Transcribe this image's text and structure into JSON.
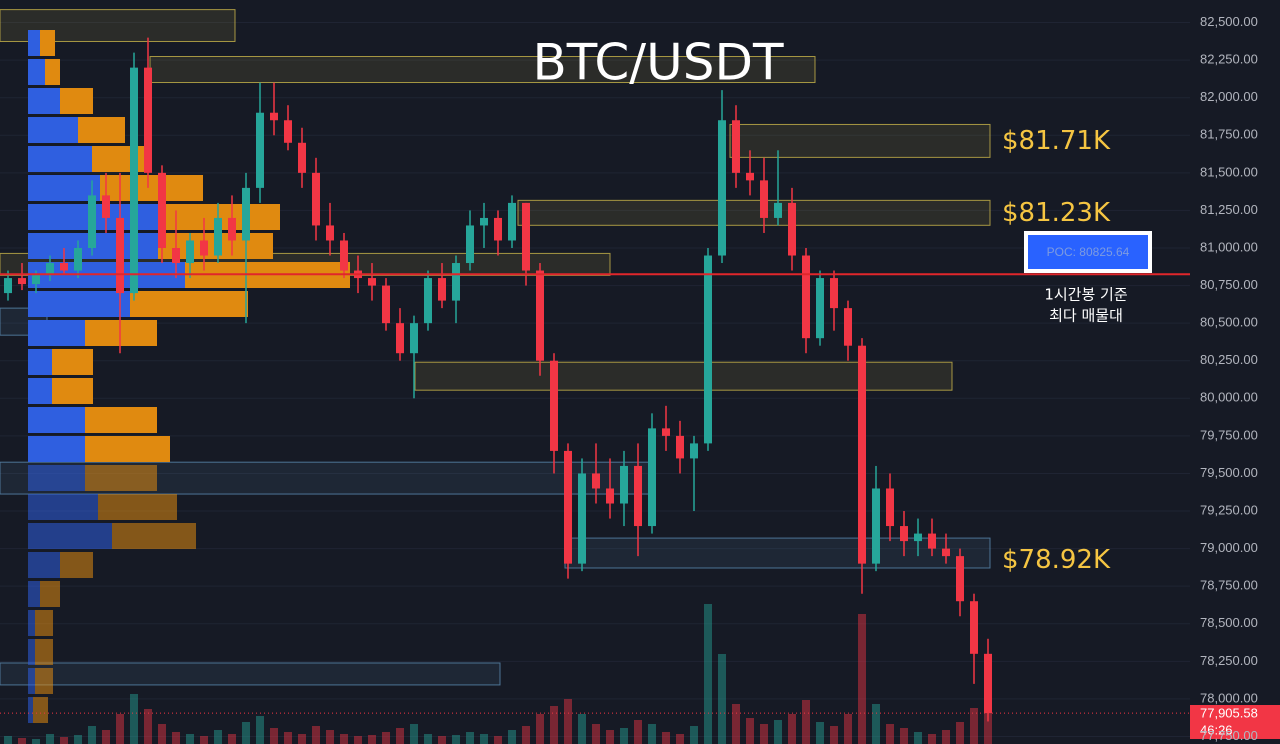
{
  "chart_data": {
    "type": "candlestick",
    "title": "BTC/USDT",
    "up_color": "#26a69a",
    "down_color": "#f23645",
    "open": [
      80700,
      80800,
      80760,
      80820,
      80900,
      80850,
      81000,
      81350,
      81200,
      80700,
      82200,
      81500,
      81000,
      80900,
      81050,
      80950,
      81200,
      81050,
      81400,
      81900,
      81850,
      81700,
      81500,
      81150,
      81050,
      80850,
      80800,
      80750,
      80500,
      80300,
      80500,
      80800,
      80650,
      80900,
      81150,
      81200,
      81050,
      81300,
      80850,
      80250,
      79650,
      78900,
      79500,
      79400,
      79300,
      79550,
      79150,
      79800,
      79750,
      79600,
      79700,
      80950,
      81850,
      81500,
      81450,
      81200,
      81300,
      80950,
      80400,
      80800,
      80600,
      80350,
      78900,
      79400,
      79150,
      79050,
      79100,
      79000,
      78950,
      78650,
      78300
    ],
    "high": [
      80850,
      80900,
      80850,
      80950,
      81000,
      81050,
      81450,
      81500,
      81500,
      82300,
      82400,
      81550,
      81250,
      81100,
      81200,
      81300,
      81350,
      81500,
      82100,
      82100,
      81950,
      81800,
      81600,
      81300,
      81100,
      80950,
      80900,
      80800,
      80600,
      80550,
      80850,
      80900,
      80950,
      81250,
      81300,
      81250,
      81350,
      81300,
      80900,
      80300,
      79700,
      79600,
      79700,
      79600,
      79650,
      79700,
      79900,
      79950,
      79850,
      79750,
      81000,
      82050,
      81950,
      81650,
      81600,
      81650,
      81400,
      81000,
      80850,
      80850,
      80650,
      80400,
      79550,
      79500,
      79250,
      79200,
      79200,
      79100,
      79000,
      78700,
      78400
    ],
    "low": [
      80650,
      80720,
      80700,
      80780,
      80820,
      80800,
      80950,
      81100,
      80300,
      80650,
      81400,
      80900,
      80800,
      80800,
      80850,
      80900,
      80950,
      80500,
      81300,
      81750,
      81650,
      81400,
      81050,
      80950,
      80800,
      80700,
      80650,
      80450,
      80250,
      80000,
      80450,
      80600,
      80500,
      80850,
      81000,
      80950,
      81000,
      80750,
      80150,
      79500,
      78800,
      78850,
      79300,
      79200,
      79150,
      78950,
      79100,
      79650,
      79500,
      79250,
      79650,
      80900,
      81400,
      81350,
      81100,
      81150,
      80850,
      80300,
      80350,
      80450,
      80250,
      78700,
      78850,
      79050,
      78950,
      78950,
      78950,
      78900,
      78550,
      78100,
      77850
    ],
    "close": [
      80800,
      80760,
      80820,
      80900,
      80850,
      81000,
      81350,
      81200,
      80700,
      82200,
      81500,
      81000,
      80900,
      81050,
      80950,
      81200,
      81050,
      81400,
      81900,
      81850,
      81700,
      81500,
      81150,
      81050,
      80850,
      80800,
      80750,
      80500,
      80300,
      80500,
      80800,
      80650,
      80900,
      81150,
      81200,
      81050,
      81300,
      80850,
      80250,
      79650,
      78900,
      79500,
      79400,
      79300,
      79550,
      79150,
      79800,
      79750,
      79600,
      79700,
      80950,
      81850,
      81500,
      81450,
      81200,
      81300,
      80950,
      80400,
      80800,
      80600,
      80350,
      78900,
      79400,
      79150,
      79050,
      79100,
      79000,
      78950,
      78650,
      78300,
      77905.58
    ],
    "volume": [
      8,
      6,
      5,
      10,
      7,
      9,
      18,
      14,
      30,
      50,
      35,
      20,
      12,
      10,
      8,
      14,
      10,
      22,
      28,
      16,
      12,
      10,
      18,
      14,
      10,
      8,
      9,
      12,
      16,
      20,
      10,
      8,
      9,
      12,
      10,
      8,
      14,
      18,
      30,
      38,
      45,
      30,
      20,
      14,
      16,
      24,
      20,
      12,
      10,
      18,
      140,
      90,
      40,
      26,
      20,
      24,
      30,
      44,
      22,
      18,
      30,
      130,
      40,
      20,
      16,
      12,
      10,
      14,
      22,
      36,
      40
    ],
    "ylim": [
      77700,
      82650
    ],
    "yticks": [
      {
        "value": 77750,
        "label": "77,750.00"
      },
      {
        "value": 78000,
        "label": "78,000.00"
      },
      {
        "value": 78250,
        "label": "78,250.00"
      },
      {
        "value": 78500,
        "label": "78,500.00"
      },
      {
        "value": 78750,
        "label": "78,750.00"
      },
      {
        "value": 79000,
        "label": "79,000.00"
      },
      {
        "value": 79250,
        "label": "79,250.00"
      },
      {
        "value": 79500,
        "label": "79,500.00"
      },
      {
        "value": 79750,
        "label": "79,750.00"
      },
      {
        "value": 80000,
        "label": "80,000.00"
      },
      {
        "value": 80250,
        "label": "80,250.00"
      },
      {
        "value": 80500,
        "label": "80,500.00"
      },
      {
        "value": 80750,
        "label": "80,750.00"
      },
      {
        "value": 81000,
        "label": "81,000.00"
      },
      {
        "value": 81250,
        "label": "81,250.00"
      },
      {
        "value": 81500,
        "label": "81,500.00"
      },
      {
        "value": 81750,
        "label": "81,750.00"
      },
      {
        "value": 82000,
        "label": "82,000.00"
      },
      {
        "value": 82250,
        "label": "82,250.00"
      },
      {
        "value": 82500,
        "label": "82,500.00"
      }
    ],
    "grid": true,
    "zones": [
      {
        "low": 82374,
        "high": 82586,
        "color": "#c9b54a"
      },
      {
        "low": 82101,
        "high": 82274,
        "color": "#c9b54a"
      },
      {
        "low": 81603,
        "high": 81822,
        "color": "#c9b54a"
      },
      {
        "low": 81151,
        "high": 81317,
        "color": "#c9b54a"
      },
      {
        "low": 80818,
        "high": 80964,
        "color": "#c9b54a"
      },
      {
        "low": 80054,
        "high": 80240,
        "color": "#c9b54a"
      },
      {
        "low": 79363,
        "high": 79575,
        "color": "#5a8ab0"
      },
      {
        "low": 78871,
        "high": 79070,
        "color": "#5a8ab0"
      },
      {
        "low": 78093,
        "high": 78239,
        "color": "#5a8ab0"
      },
      {
        "low": 80420,
        "high": 80600,
        "color": "#5a8ab0"
      }
    ],
    "volume_profile": {
      "buy_color": "#2f5fe0",
      "sell_color": "#e08a10",
      "buy": [
        12,
        17,
        32,
        50,
        64,
        72,
        137,
        130,
        157,
        102,
        57,
        24,
        24,
        57,
        57,
        57,
        70,
        84,
        32,
        12,
        7,
        7,
        7,
        5
      ],
      "sell": [
        15,
        15,
        33,
        47,
        58,
        103,
        115,
        115,
        165,
        118,
        72,
        41,
        41,
        72,
        85,
        72,
        79,
        84,
        33,
        20,
        18,
        18,
        18,
        15
      ]
    },
    "levels": [
      {
        "value": 81710,
        "label": "$81.71K"
      },
      {
        "value": 81230,
        "label": "$81.23K"
      },
      {
        "value": 78920,
        "label": "$78.92K"
      }
    ],
    "poc": {
      "value": 80825.64,
      "label": "POC: 80825.64",
      "color": "#e0262b",
      "note": [
        "1시간봉 기준",
        "최다 매물대"
      ]
    },
    "current": {
      "value": 77905.58,
      "label": "77,905.58",
      "countdown": "46:26"
    }
  }
}
